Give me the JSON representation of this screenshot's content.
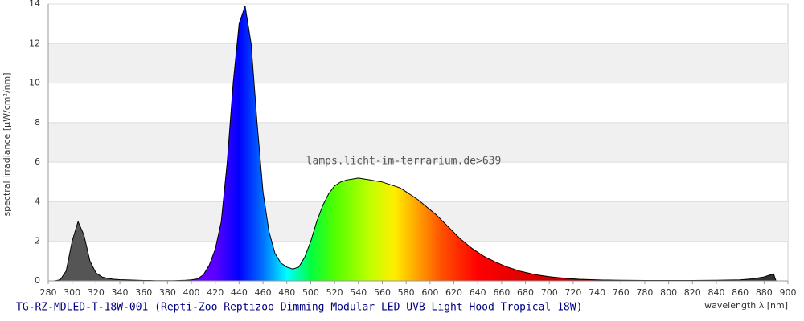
{
  "chart_data": {
    "type": "area",
    "title": "TG-RZ-MDLED-T-18W-001 (Repti-Zoo Reptizoo Dimming Modular LED UVB Light Hood Tropical 18W)",
    "watermark": "lamps.licht-im-terrarium.de>639",
    "x_label": "wavelength λ [nm]",
    "y_label": "spectral irradiance [µW/cm²/nm]",
    "x": [
      280,
      285,
      290,
      295,
      300,
      305,
      310,
      315,
      320,
      325,
      330,
      335,
      340,
      345,
      350,
      355,
      360,
      365,
      370,
      375,
      380,
      385,
      390,
      395,
      400,
      405,
      410,
      415,
      420,
      425,
      430,
      435,
      440,
      445,
      450,
      455,
      460,
      465,
      470,
      475,
      480,
      485,
      490,
      495,
      500,
      505,
      510,
      515,
      520,
      525,
      530,
      535,
      540,
      545,
      550,
      555,
      560,
      565,
      570,
      575,
      580,
      585,
      590,
      595,
      600,
      605,
      610,
      615,
      620,
      625,
      630,
      635,
      640,
      645,
      650,
      655,
      660,
      665,
      670,
      675,
      680,
      685,
      690,
      695,
      700,
      705,
      710,
      715,
      720,
      725,
      730,
      735,
      740,
      745,
      750,
      760,
      780,
      800,
      820,
      840,
      860,
      870,
      880,
      885,
      888,
      890
    ],
    "values": [
      0,
      0,
      0.05,
      0.5,
      2.0,
      3.0,
      2.3,
      1.0,
      0.4,
      0.2,
      0.12,
      0.08,
      0.06,
      0.05,
      0.04,
      0.03,
      0.02,
      0.02,
      0.01,
      0.01,
      0.01,
      0.01,
      0.02,
      0.03,
      0.05,
      0.1,
      0.3,
      0.8,
      1.6,
      3.0,
      6.0,
      10.0,
      13.0,
      13.9,
      12.0,
      8.0,
      4.5,
      2.5,
      1.4,
      0.9,
      0.7,
      0.6,
      0.7,
      1.2,
      2.0,
      3.0,
      3.8,
      4.4,
      4.8,
      5.0,
      5.1,
      5.15,
      5.2,
      5.15,
      5.1,
      5.05,
      5.0,
      4.9,
      4.8,
      4.7,
      4.5,
      4.3,
      4.1,
      3.85,
      3.6,
      3.35,
      3.05,
      2.75,
      2.45,
      2.15,
      1.9,
      1.65,
      1.45,
      1.25,
      1.1,
      0.95,
      0.82,
      0.7,
      0.6,
      0.5,
      0.43,
      0.36,
      0.3,
      0.25,
      0.21,
      0.18,
      0.15,
      0.12,
      0.1,
      0.08,
      0.07,
      0.06,
      0.05,
      0.04,
      0.04,
      0.03,
      0.02,
      0.02,
      0.02,
      0.03,
      0.05,
      0.1,
      0.2,
      0.3,
      0.35,
      0
    ],
    "xlim": [
      280,
      900
    ],
    "ylim": [
      0,
      14
    ],
    "xticks": [
      280,
      300,
      320,
      340,
      360,
      380,
      400,
      420,
      440,
      460,
      480,
      500,
      520,
      540,
      560,
      580,
      600,
      620,
      640,
      660,
      680,
      700,
      720,
      740,
      760,
      780,
      800,
      820,
      840,
      860,
      880,
      900
    ],
    "yticks": [
      0,
      2,
      4,
      6,
      8,
      10,
      12,
      14
    ],
    "grid": true
  }
}
